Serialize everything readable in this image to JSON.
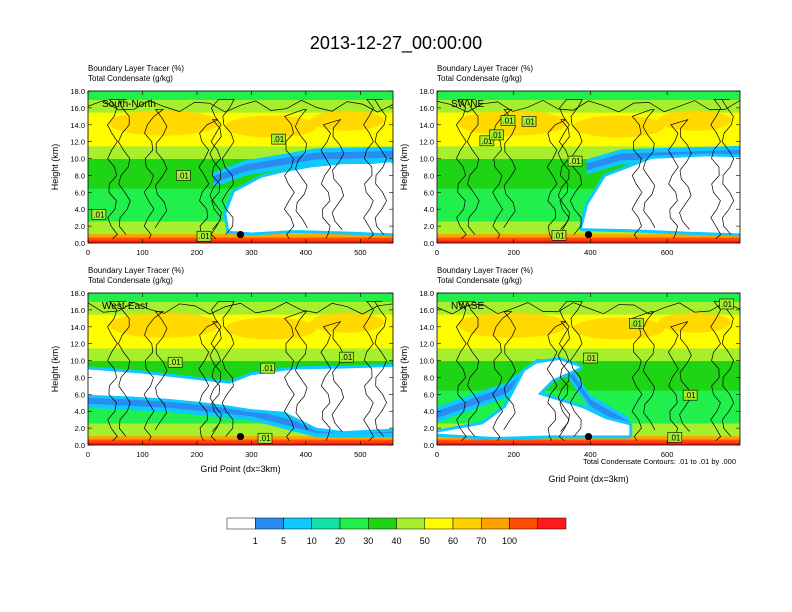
{
  "title": "2013-12-27_00:00:00",
  "footer_note": "Total Condensate Contours: .01 to .01 by .000",
  "colors": {
    "scale": [
      "#ffffff",
      "#2a8cf0",
      "#0ec8ff",
      "#10e2a8",
      "#21f04c",
      "#1ed414",
      "#a7ef2c",
      "#fffc00",
      "#ffd200",
      "#ffa200",
      "#ff4d00",
      "#ff1a1a"
    ]
  },
  "colorbar": {
    "labels": [
      "1",
      "5",
      "10",
      "20",
      "30",
      "40",
      "50",
      "60",
      "70",
      "100"
    ]
  },
  "chart_data": [
    {
      "type": "heatmap",
      "id": "p1",
      "line1": "Boundary Layer Tracer   (%)",
      "line2": "Total Condensate   (g/kg)",
      "section": "South-North",
      "ylabel": "Height (km)",
      "xlabel": "",
      "xlim": [
        0,
        560
      ],
      "ylim": [
        0,
        18
      ],
      "xticks": [
        0,
        100,
        200,
        300,
        400,
        500
      ],
      "yticks": [
        "0.0",
        "2.0",
        "4.0",
        "6.0",
        "8.0",
        "10.0",
        "12.0",
        "14.0",
        "16.0",
        "18.0"
      ],
      "contour_label": ".01",
      "contour_label_pos": [
        [
          20,
          3.4
        ],
        [
          175,
          8
        ],
        [
          213,
          0.8
        ],
        [
          350,
          12.3
        ]
      ],
      "marker": [
        280,
        1
      ],
      "clear_region": [
        [
          260,
          1.5
        ],
        [
          255,
          3.5
        ],
        [
          270,
          6
        ],
        [
          320,
          7.7
        ],
        [
          360,
          8.3
        ],
        [
          410,
          8.9
        ],
        [
          470,
          9.3
        ],
        [
          520,
          9.3
        ],
        [
          555,
          9.5
        ],
        [
          560,
          9.3
        ],
        [
          560,
          7
        ],
        [
          560,
          1.2
        ],
        [
          480,
          1.4
        ],
        [
          380,
          1.6
        ],
        [
          300,
          1.3
        ]
      ],
      "moist_band": [
        [
          230,
          7.5
        ],
        [
          290,
          8.9
        ],
        [
          420,
          10.3
        ],
        [
          560,
          10.5
        ]
      ]
    },
    {
      "type": "heatmap",
      "id": "p2",
      "line1": "Boundary Layer Tracer   (%)",
      "line2": "Total Condensate   (g/kg)",
      "section": "SW-NE",
      "ylabel": "Height (km)",
      "xlabel": "",
      "xlim": [
        0,
        790
      ],
      "ylim": [
        0,
        18
      ],
      "xticks": [
        0,
        200,
        400,
        600
      ],
      "yticks": [
        "0.0",
        "2.0",
        "4.0",
        "6.0",
        "8.0",
        "10.0",
        "12.0",
        "14.0",
        "16.0",
        "18.0"
      ],
      "contour_label": ".01",
      "contour_label_pos": [
        [
          130,
          12.1
        ],
        [
          240,
          14.4
        ],
        [
          360,
          9.7
        ],
        [
          155,
          12.8
        ],
        [
          185,
          14.5
        ],
        [
          318,
          0.9
        ]
      ],
      "marker": [
        395,
        1
      ],
      "clear_region": [
        [
          380,
          1.8
        ],
        [
          395,
          4.5
        ],
        [
          440,
          7.8
        ],
        [
          560,
          9.9
        ],
        [
          700,
          10.2
        ],
        [
          790,
          10.1
        ],
        [
          790,
          1.2
        ],
        [
          650,
          1.4
        ],
        [
          500,
          1.7
        ]
      ],
      "moist_band": [
        [
          390,
          9
        ],
        [
          480,
          10.2
        ],
        [
          790,
          10.6
        ]
      ]
    },
    {
      "type": "heatmap",
      "id": "p3",
      "line1": "Boundary Layer Tracer   (%)",
      "line2": "Total Condensate   (g/kg)",
      "section": "West-East",
      "ylabel": "Height (km)",
      "xlabel": "Grid Point (dx=3km)",
      "xlim": [
        0,
        560
      ],
      "ylim": [
        0,
        18
      ],
      "xticks": [
        0,
        100,
        200,
        300,
        400,
        500
      ],
      "yticks": [
        "0.0",
        "2.0",
        "4.0",
        "6.0",
        "8.0",
        "10.0",
        "12.0",
        "14.0",
        "16.0",
        "18.0"
      ],
      "contour_label": ".01",
      "contour_label_pos": [
        [
          330,
          9.1
        ],
        [
          475,
          10.4
        ],
        [
          160,
          9.8
        ],
        [
          325,
          0.8
        ]
      ],
      "marker": [
        280,
        1
      ],
      "clear_region": [
        [
          0,
          8.9
        ],
        [
          100,
          8.4
        ],
        [
          180,
          7.8
        ],
        [
          260,
          7.2
        ],
        [
          300,
          8.2
        ],
        [
          380,
          8.9
        ],
        [
          470,
          9.0
        ],
        [
          560,
          9.2
        ],
        [
          560,
          2.0
        ],
        [
          470,
          1.7
        ],
        [
          420,
          2.1
        ],
        [
          360,
          4.0
        ],
        [
          300,
          4.3
        ],
        [
          250,
          4.8
        ],
        [
          200,
          5.2
        ],
        [
          150,
          5.5
        ],
        [
          80,
          5.8
        ],
        [
          0,
          6.0
        ]
      ],
      "moist_band": [
        [
          0,
          5.3
        ],
        [
          150,
          4.8
        ],
        [
          300,
          3.8
        ],
        [
          420,
          1.8
        ],
        [
          560,
          1.8
        ]
      ]
    },
    {
      "type": "heatmap",
      "id": "p4",
      "line1": "Boundary Layer Tracer   (%)",
      "line2": "Total Condensate   (g/kg)",
      "section": "NW-SE",
      "ylabel": "Height (km)",
      "xlabel": "Grid Point (dx=3km)",
      "xlim": [
        0,
        790
      ],
      "ylim": [
        0,
        18
      ],
      "xticks": [
        0,
        200,
        400,
        600
      ],
      "yticks": [
        "0.0",
        "2.0",
        "4.0",
        "6.0",
        "8.0",
        "10.0",
        "12.0",
        "14.0",
        "16.0",
        "18.0"
      ],
      "contour_label": ".01",
      "contour_label_pos": [
        [
          400,
          10.3
        ],
        [
          520,
          14.4
        ],
        [
          755,
          16.7
        ],
        [
          660,
          5.9
        ],
        [
          620,
          0.9
        ]
      ],
      "marker": [
        395,
        1
      ],
      "clear_region": [
        [
          0,
          1.4
        ],
        [
          120,
          2.4
        ],
        [
          180,
          4.4
        ],
        [
          230,
          8.7
        ],
        [
          260,
          9.6
        ],
        [
          320,
          10.0
        ],
        [
          370,
          9.2
        ],
        [
          300,
          7.8
        ],
        [
          260,
          6.0
        ],
        [
          380,
          4.3
        ],
        [
          440,
          3.0
        ],
        [
          500,
          2.3
        ],
        [
          500,
          1.2
        ],
        [
          300,
          1.2
        ],
        [
          150,
          1.0
        ]
      ],
      "moist_band": [
        [
          0,
          3.6
        ],
        [
          180,
          6.5
        ],
        [
          260,
          9.3
        ],
        [
          340,
          9.0
        ],
        [
          400,
          5.0
        ],
        [
          500,
          2.4
        ]
      ]
    }
  ]
}
